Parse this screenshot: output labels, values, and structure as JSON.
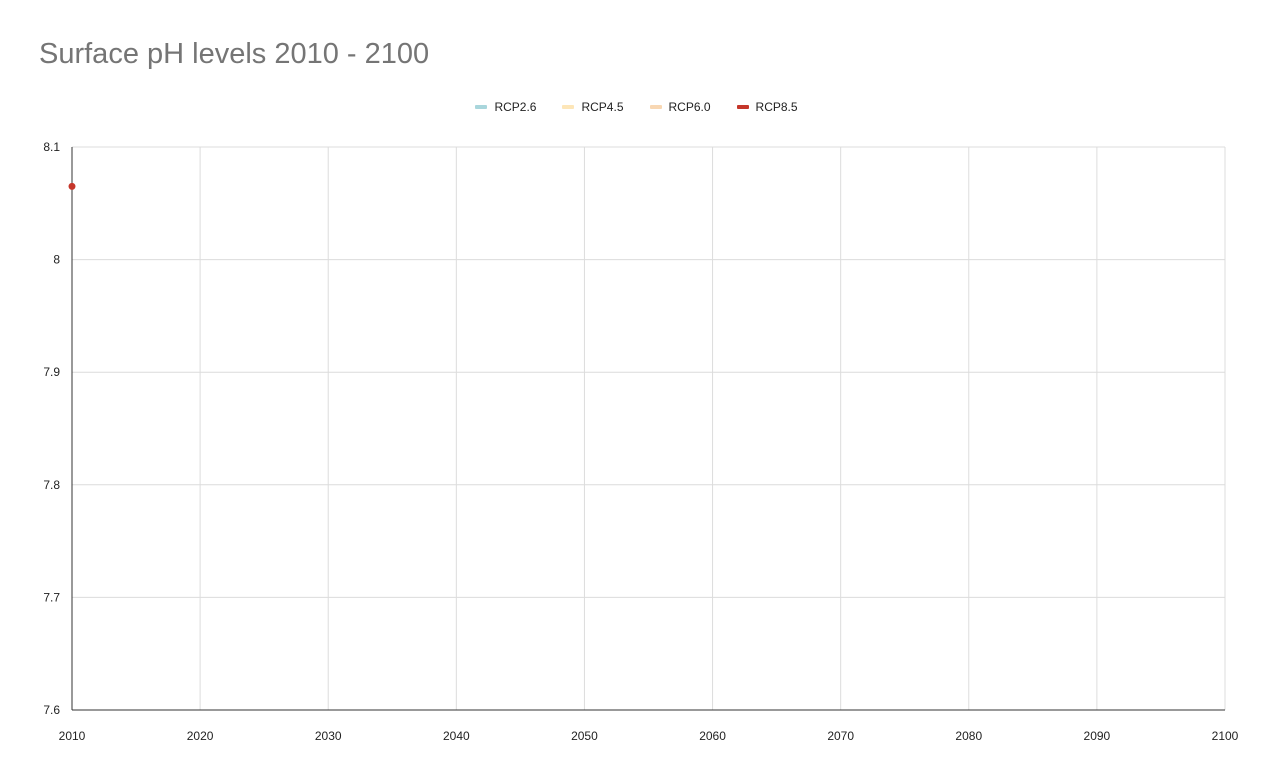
{
  "chart_data": {
    "type": "line",
    "title": "Surface pH levels 2010 - 2100",
    "xlabel": "",
    "ylabel": "",
    "xlim": [
      2010,
      2100
    ],
    "ylim": [
      7.6,
      8.1
    ],
    "x_ticks": [
      "2010",
      "2020",
      "2030",
      "2040",
      "2050",
      "2060",
      "2070",
      "2080",
      "2090",
      "2100"
    ],
    "y_ticks": [
      "8.1",
      "8",
      "7.9",
      "7.8",
      "7.7",
      "7.6"
    ],
    "grid": true,
    "legend_position": "top-center",
    "series": [
      {
        "name": "RCP2.6",
        "color": "#a9d6dc",
        "points": []
      },
      {
        "name": "RCP4.5",
        "color": "#fde6b8",
        "points": []
      },
      {
        "name": "RCP6.0",
        "color": "#f8d7b3",
        "points": []
      },
      {
        "name": "RCP8.5",
        "color": "#c5362a",
        "points": [
          {
            "x": 2010,
            "y": 8.065
          }
        ]
      }
    ]
  }
}
